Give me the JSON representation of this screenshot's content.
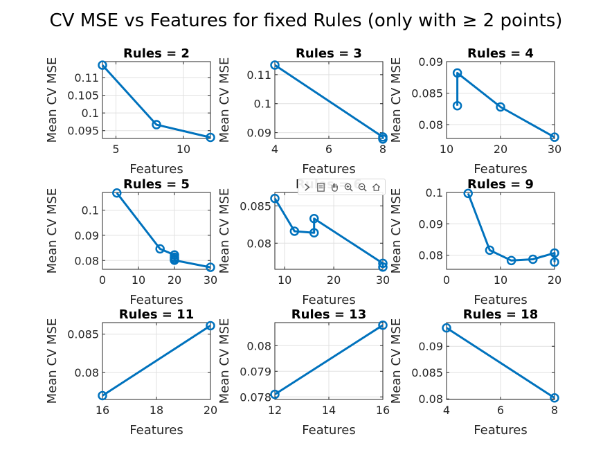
{
  "figure": {
    "title": "CV MSE vs Features for fixed Rules (only with ≥ 2 points)"
  },
  "toolbar": [
    {
      "icon": "chevron-right-icon"
    },
    {
      "icon": "export-icon"
    },
    {
      "icon": "pan-hand-icon"
    },
    {
      "icon": "zoom-in-icon"
    },
    {
      "icon": "zoom-out-icon"
    },
    {
      "icon": "home-icon"
    }
  ],
  "colors": {
    "series": "#0072bd",
    "axis": "#262626",
    "grid": "#e0e0e0"
  },
  "chart_data": [
    {
      "type": "line",
      "title": "Rules = 2",
      "xlabel": "Features",
      "ylabel": "Mean CV MSE",
      "grid": true,
      "xlim": [
        4,
        12
      ],
      "ylim": [
        0.0928,
        0.1145
      ],
      "xticks": [
        5,
        10
      ],
      "yticks": [
        0.095,
        0.1,
        0.105,
        0.11
      ],
      "xticklabels": [
        "5",
        "10"
      ],
      "yticklabels": [
        "0.095",
        "0.1",
        "0.105",
        "0.11"
      ],
      "x": [
        4,
        8,
        12
      ],
      "y": [
        0.1135,
        0.0967,
        0.0931
      ]
    },
    {
      "type": "line",
      "title": "Rules = 3",
      "xlabel": "Features",
      "ylabel": "Mean CV MSE",
      "grid": true,
      "xlim": [
        4,
        8
      ],
      "ylim": [
        0.088,
        0.1145
      ],
      "xticks": [
        4,
        6,
        8
      ],
      "yticks": [
        0.09,
        0.1,
        0.11
      ],
      "xticklabels": [
        "4",
        "6",
        "8"
      ],
      "yticklabels": [
        "0.09",
        "0.1",
        "0.11"
      ],
      "x": [
        4,
        8,
        8
      ],
      "y": [
        0.1133,
        0.0885,
        0.0878
      ]
    },
    {
      "type": "line",
      "title": "Rules = 4",
      "xlabel": "Features",
      "ylabel": "Mean CV MSE",
      "grid": true,
      "xlim": [
        10,
        30
      ],
      "ylim": [
        0.0778,
        0.09
      ],
      "xticks": [
        10,
        20,
        30
      ],
      "yticks": [
        0.08,
        0.085,
        0.09
      ],
      "xticklabels": [
        "10",
        "20",
        "30"
      ],
      "yticklabels": [
        "0.08",
        "0.085",
        "0.09"
      ],
      "x": [
        12,
        12,
        20,
        30
      ],
      "y": [
        0.083,
        0.0882,
        0.0828,
        0.078
      ]
    },
    {
      "type": "line",
      "title": "Rules = 5",
      "xlabel": "Features",
      "ylabel": "Mean CV MSE",
      "grid": true,
      "xlim": [
        0,
        30
      ],
      "ylim": [
        0.0765,
        0.107
      ],
      "xticks": [
        0,
        10,
        20,
        30
      ],
      "yticks": [
        0.08,
        0.09,
        0.1
      ],
      "xticklabels": [
        "0",
        "10",
        "20",
        "30"
      ],
      "yticklabels": [
        "0.08",
        "0.09",
        "0.1"
      ],
      "x": [
        4,
        16,
        20,
        20,
        20,
        20,
        30
      ],
      "y": [
        0.1068,
        0.0846,
        0.0822,
        0.0813,
        0.0806,
        0.0801,
        0.0773
      ]
    },
    {
      "type": "line",
      "title": "Rules = 6",
      "xlabel": "Features",
      "ylabel": "Mean CV MSE",
      "grid": true,
      "xlim": [
        8,
        30
      ],
      "ylim": [
        0.0765,
        0.0868
      ],
      "xticks": [
        10,
        20,
        30
      ],
      "yticks": [
        0.08,
        0.085
      ],
      "xticklabels": [
        "10",
        "20",
        "30"
      ],
      "yticklabels": [
        "0.08",
        "0.085"
      ],
      "x": [
        8,
        12,
        16,
        16,
        30,
        30
      ],
      "y": [
        0.086,
        0.0816,
        0.0814,
        0.0833,
        0.0773,
        0.0768
      ]
    },
    {
      "type": "line",
      "title": "Rules = 9",
      "xlabel": "Features",
      "ylabel": "Mean CV MSE",
      "grid": true,
      "xlim": [
        0,
        20
      ],
      "ylim": [
        0.0755,
        0.1
      ],
      "xticks": [
        0,
        10,
        20
      ],
      "yticks": [
        0.08,
        0.09,
        0.1
      ],
      "xticklabels": [
        "0",
        "10",
        "20"
      ],
      "yticklabels": [
        "0.08",
        "0.09",
        "0.1"
      ],
      "x": [
        4,
        8,
        12,
        16,
        20,
        20
      ],
      "y": [
        0.0997,
        0.0816,
        0.0783,
        0.0787,
        0.0807,
        0.0778
      ]
    },
    {
      "type": "line",
      "title": "Rules = 11",
      "xlabel": "Features",
      "ylabel": "Mean CV MSE",
      "grid": true,
      "xlim": [
        16,
        20
      ],
      "ylim": [
        0.0765,
        0.0865
      ],
      "xticks": [
        16,
        18,
        20
      ],
      "yticks": [
        0.08,
        0.085
      ],
      "xticklabels": [
        "16",
        "18",
        "20"
      ],
      "yticklabels": [
        "0.08",
        "0.085"
      ],
      "x": [
        16,
        20
      ],
      "y": [
        0.077,
        0.0861
      ]
    },
    {
      "type": "line",
      "title": "Rules = 13",
      "xlabel": "Features",
      "ylabel": "Mean CV MSE",
      "grid": true,
      "xlim": [
        12,
        16
      ],
      "ylim": [
        0.0779,
        0.0809
      ],
      "xticks": [
        12,
        14,
        16
      ],
      "yticks": [
        0.078,
        0.079,
        0.08
      ],
      "xticklabels": [
        "12",
        "14",
        "16"
      ],
      "yticklabels": [
        "0.078",
        "0.079",
        "0.08"
      ],
      "x": [
        12,
        16
      ],
      "y": [
        0.0781,
        0.0808
      ]
    },
    {
      "type": "line",
      "title": "Rules = 18",
      "xlabel": "Features",
      "ylabel": "Mean CV MSE",
      "grid": true,
      "xlim": [
        4,
        8
      ],
      "ylim": [
        0.0799,
        0.0945
      ],
      "xticks": [
        4,
        6,
        8
      ],
      "yticks": [
        0.08,
        0.085,
        0.09
      ],
      "xticklabels": [
        "4",
        "6",
        "8"
      ],
      "yticklabels": [
        "0.08",
        "0.085",
        "0.09"
      ],
      "x": [
        4,
        8
      ],
      "y": [
        0.0935,
        0.0802
      ]
    }
  ]
}
